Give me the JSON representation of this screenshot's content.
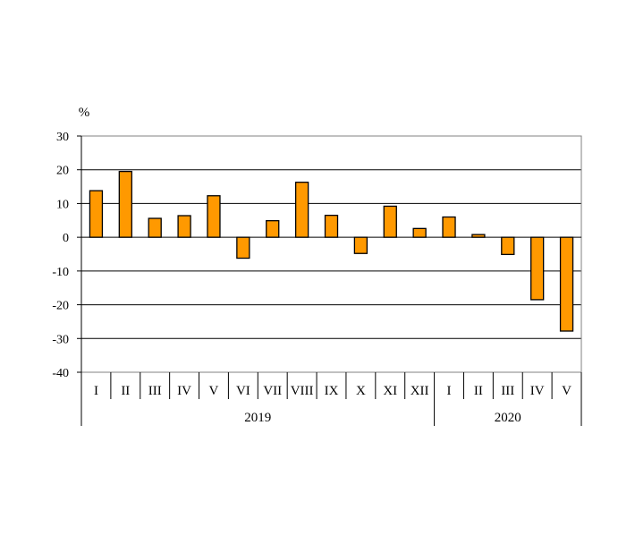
{
  "chart_data": {
    "type": "bar",
    "unit_label": "%",
    "categories": [
      "I",
      "II",
      "III",
      "IV",
      "V",
      "VI",
      "VII",
      "VIII",
      "IX",
      "X",
      "XI",
      "XII",
      "I",
      "II",
      "III",
      "IV",
      "V"
    ],
    "groups": [
      {
        "label": "2019",
        "count": 12
      },
      {
        "label": "2020",
        "count": 5
      }
    ],
    "values": [
      13.8,
      19.5,
      5.6,
      6.4,
      12.3,
      -6.2,
      4.9,
      16.3,
      6.5,
      -4.8,
      9.2,
      2.6,
      6.0,
      0.8,
      -5.1,
      -18.5,
      -27.8
    ],
    "ylim": [
      -40,
      30
    ],
    "yticks": [
      "30",
      "20",
      "10",
      "0",
      "-10",
      "-20",
      "-30",
      "-40"
    ],
    "ytick_values": [
      30,
      20,
      10,
      0,
      -10,
      -20,
      -30,
      -40
    ],
    "grid": true,
    "bar_color": "#FF9900",
    "bar_edge_color": "#000000"
  }
}
